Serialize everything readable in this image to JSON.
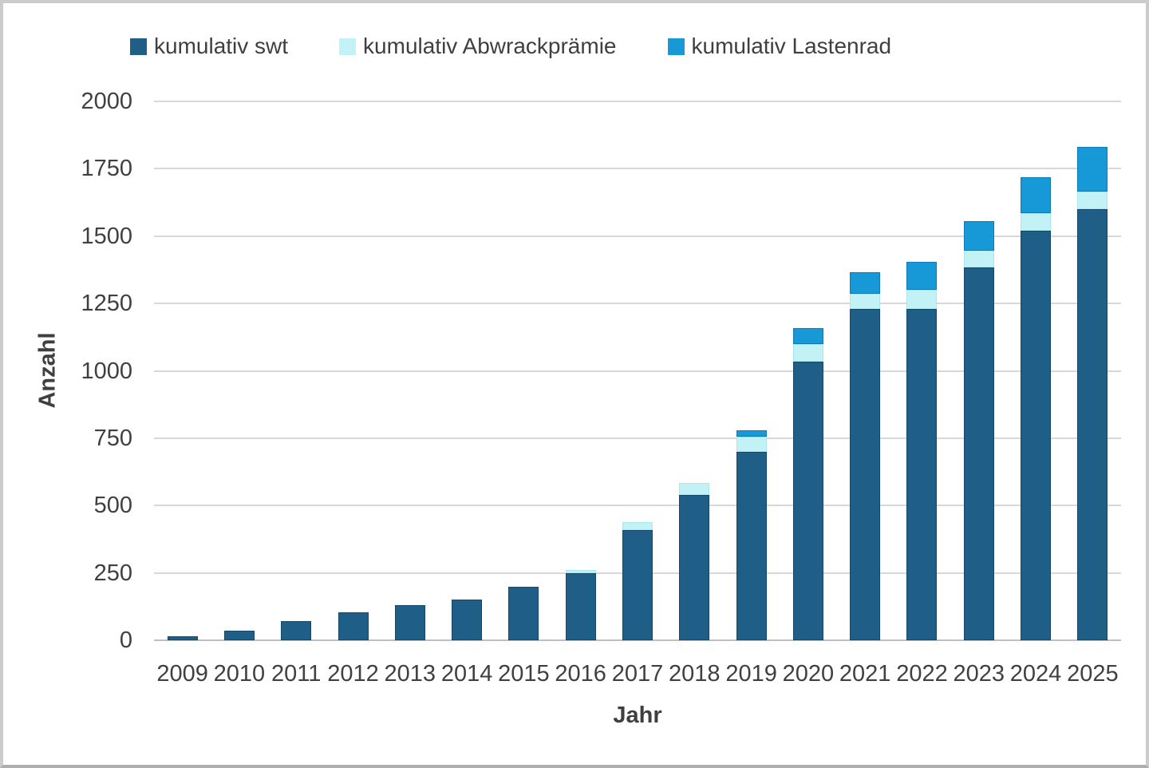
{
  "chart_data": {
    "type": "bar",
    "subtype": "stacked",
    "categories": [
      "2009",
      "2010",
      "2011",
      "2012",
      "2013",
      "2014",
      "2015",
      "2016",
      "2017",
      "2018",
      "2019",
      "2020",
      "2021",
      "2022",
      "2023",
      "2024",
      "2025"
    ],
    "series": [
      {
        "name": "kumulativ swt",
        "color": "#1f5f87",
        "border_color": "#15476b",
        "values": [
          15,
          35,
          70,
          105,
          130,
          150,
          200,
          250,
          410,
          540,
          700,
          1035,
          1230,
          1230,
          1385,
          1520,
          1600
        ]
      },
      {
        "name": "kumulativ Abwrackprämie",
        "color": "#c2f2f5",
        "border_color": "#aae6ec",
        "values": [
          0,
          0,
          0,
          0,
          0,
          0,
          0,
          12,
          30,
          45,
          55,
          65,
          55,
          70,
          60,
          65,
          65
        ]
      },
      {
        "name": "kumulativ Lastenrad",
        "color": "#1798d7",
        "border_color": "#0e7ab8",
        "values": [
          0,
          0,
          0,
          0,
          0,
          0,
          0,
          0,
          0,
          0,
          25,
          60,
          80,
          105,
          110,
          135,
          165
        ]
      }
    ],
    "title": "",
    "xlabel": "Jahr",
    "ylabel": "Anzahl",
    "ylim": [
      0,
      2000
    ],
    "yticks": [
      0,
      250,
      500,
      750,
      1000,
      1250,
      1500,
      1750,
      2000
    ],
    "grid": true,
    "legend_position": "top"
  },
  "style": {
    "grid_color": "#d8d8d8",
    "baseline_color": "#bfbfbf",
    "text_color": "#3f3f3f",
    "frame_border_color": "#cccccc"
  }
}
